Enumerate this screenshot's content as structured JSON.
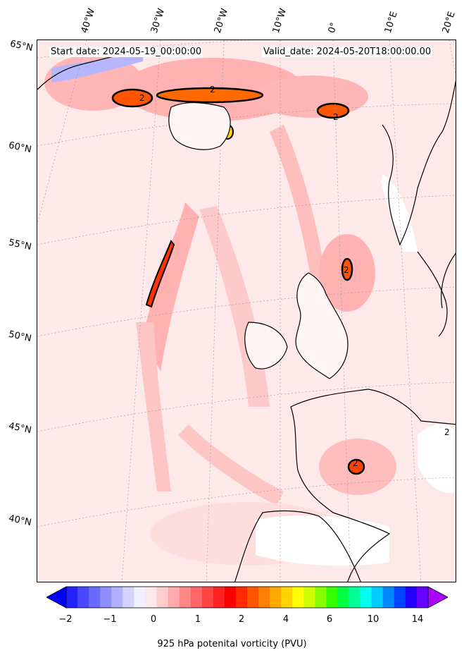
{
  "header": {
    "start_date": "Start date: 2024-05-19_00:00:00",
    "valid_date": "Valid_date: 2024-05-20T18:00:00.00"
  },
  "lat_labels": [
    "65°N",
    "60°N",
    "55°N",
    "50°N",
    "45°N",
    "40°N"
  ],
  "lon_labels": [
    "40°W",
    "30°W",
    "20°W",
    "10°W",
    "0°",
    "10°E",
    "20°E"
  ],
  "contour_label": "2",
  "colorbar": {
    "label": "925 hPa potenital vorticity (PVU)",
    "tick_labels": [
      "−2",
      "−1",
      "0",
      "1",
      "2",
      "4",
      "6",
      "10",
      "14"
    ],
    "colors": [
      "#0000ff",
      "#2222ff",
      "#4848ff",
      "#6a6aff",
      "#8e8eff",
      "#b0b0ff",
      "#d4d4ff",
      "#f0f0ff",
      "#ffe8e8",
      "#ffcccc",
      "#ffaaaa",
      "#ff8888",
      "#ff6666",
      "#ff4444",
      "#ff2222",
      "#ff0000",
      "#ff2a00",
      "#ff5500",
      "#ff8000",
      "#ffaa00",
      "#ffd400",
      "#ffff00",
      "#ccff00",
      "#88ff00",
      "#33ff00",
      "#00ff44",
      "#00ff99",
      "#00ffee",
      "#00ccff",
      "#0088ff",
      "#0044ff",
      "#2200ff",
      "#6600ff",
      "#aa00ff"
    ]
  }
}
